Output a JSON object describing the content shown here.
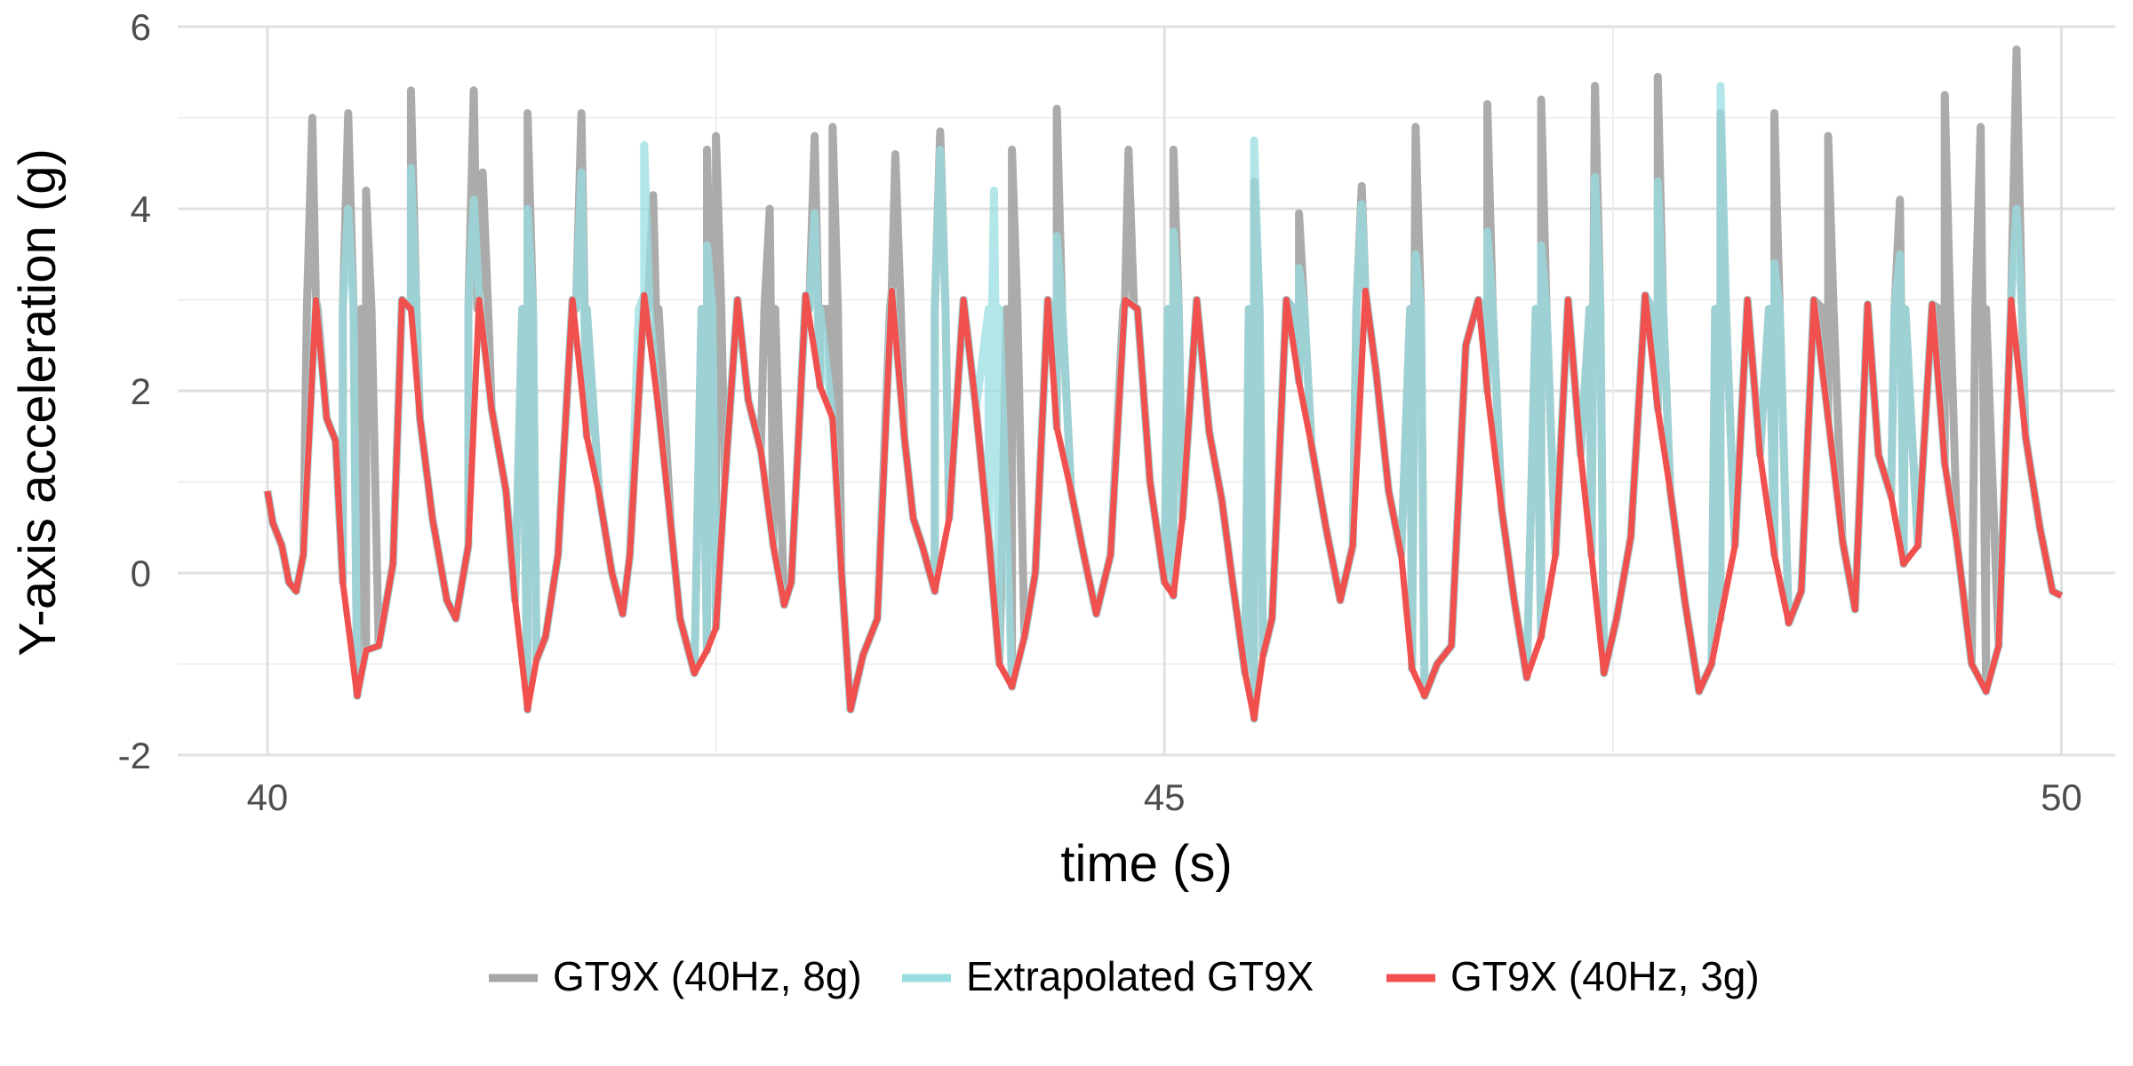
{
  "chart_data": {
    "type": "line",
    "title": "",
    "xlabel": "time (s)",
    "ylabel": "Y-axis acceleration (g)",
    "xlim": [
      39.5,
      50.3
    ],
    "ylim": [
      -2,
      6
    ],
    "x_ticks": [
      "40",
      "45",
      "50"
    ],
    "x_tick_values": [
      40,
      45,
      50
    ],
    "y_ticks": [
      "-2",
      "0",
      "2",
      "4",
      "6"
    ],
    "y_tick_values": [
      -2,
      0,
      2,
      4,
      6
    ],
    "grid": true,
    "legend_position": "bottom",
    "series": [
      {
        "name": "GT9X (40Hz, 8g)",
        "color": "#a6a6a6",
        "peaks": [
          {
            "t": 40.45,
            "v": 5.05
          },
          {
            "t": 41.15,
            "v": 5.3
          },
          {
            "t": 41.75,
            "v": 5.05
          },
          {
            "t": 42.45,
            "v": 4.65
          },
          {
            "t": 43.05,
            "v": 4.8
          },
          {
            "t": 43.75,
            "v": 4.85
          },
          {
            "t": 44.4,
            "v": 5.1
          },
          {
            "t": 45.05,
            "v": 4.65
          },
          {
            "t": 45.75,
            "v": 3.95
          },
          {
            "t": 46.4,
            "v": 4.9
          },
          {
            "t": 47.1,
            "v": 5.2
          },
          {
            "t": 47.75,
            "v": 5.45
          },
          {
            "t": 48.4,
            "v": 5.05
          },
          {
            "t": 49.1,
            "v": 4.1
          },
          {
            "t": 49.75,
            "v": 5.75
          }
        ],
        "secondary_peaks": [
          {
            "t": 40.25,
            "v": 5.0
          },
          {
            "t": 40.55,
            "v": 4.2
          },
          {
            "t": 40.8,
            "v": 5.3
          },
          {
            "t": 41.2,
            "v": 4.4
          },
          {
            "t": 41.45,
            "v": 5.05
          },
          {
            "t": 42.15,
            "v": 4.15
          },
          {
            "t": 42.5,
            "v": 4.8
          },
          {
            "t": 42.8,
            "v": 4.0
          },
          {
            "t": 43.15,
            "v": 4.9
          },
          {
            "t": 43.5,
            "v": 4.6
          },
          {
            "t": 44.15,
            "v": 4.65
          },
          {
            "t": 44.8,
            "v": 4.65
          },
          {
            "t": 45.5,
            "v": 4.3
          },
          {
            "t": 46.1,
            "v": 4.25
          },
          {
            "t": 46.8,
            "v": 5.15
          },
          {
            "t": 47.4,
            "v": 5.35
          },
          {
            "t": 48.1,
            "v": 5.05
          },
          {
            "t": 48.7,
            "v": 4.8
          },
          {
            "t": 49.35,
            "v": 5.25
          },
          {
            "t": 49.55,
            "v": 4.9
          }
        ]
      },
      {
        "name": "Extrapolated GT9X",
        "color": "#99dde0",
        "peaks": [
          {
            "t": 40.45,
            "v": 4.0
          },
          {
            "t": 40.8,
            "v": 4.45
          },
          {
            "t": 41.15,
            "v": 4.1
          },
          {
            "t": 41.45,
            "v": 4.0
          },
          {
            "t": 41.75,
            "v": 4.4
          },
          {
            "t": 42.1,
            "v": 4.7
          },
          {
            "t": 42.45,
            "v": 3.6
          },
          {
            "t": 43.05,
            "v": 3.95
          },
          {
            "t": 43.75,
            "v": 4.65
          },
          {
            "t": 44.05,
            "v": 4.2
          },
          {
            "t": 44.4,
            "v": 3.7
          },
          {
            "t": 45.05,
            "v": 3.75
          },
          {
            "t": 45.5,
            "v": 4.75
          },
          {
            "t": 45.75,
            "v": 3.35
          },
          {
            "t": 46.1,
            "v": 4.05
          },
          {
            "t": 46.4,
            "v": 3.5
          },
          {
            "t": 46.8,
            "v": 3.75
          },
          {
            "t": 47.1,
            "v": 3.6
          },
          {
            "t": 47.4,
            "v": 4.35
          },
          {
            "t": 47.75,
            "v": 4.3
          },
          {
            "t": 48.1,
            "v": 5.35
          },
          {
            "t": 48.4,
            "v": 3.4
          },
          {
            "t": 49.1,
            "v": 3.5
          },
          {
            "t": 49.75,
            "v": 4.0
          }
        ]
      },
      {
        "name": "GT9X (40Hz, 3g)",
        "color": "#f0504e",
        "x": [
          40.0,
          40.03,
          40.08,
          40.12,
          40.16,
          40.2,
          40.27,
          40.33,
          40.38,
          40.42,
          40.5,
          40.55,
          40.62,
          40.7,
          40.75,
          40.8,
          40.85,
          40.92,
          41.0,
          41.05,
          41.12,
          41.18,
          41.25,
          41.33,
          41.38,
          41.45,
          41.5,
          41.55,
          41.62,
          41.7,
          41.78,
          41.85,
          41.92,
          41.98,
          42.02,
          42.1,
          42.18,
          42.25,
          42.3,
          42.38,
          42.45,
          42.5,
          42.55,
          42.62,
          42.68,
          42.75,
          42.82,
          42.88,
          42.92,
          43.0,
          43.08,
          43.15,
          43.2,
          43.25,
          43.32,
          43.4,
          43.48,
          43.55,
          43.6,
          43.65,
          43.72,
          43.8,
          43.88,
          43.95,
          44.02,
          44.08,
          44.15,
          44.22,
          44.28,
          44.35,
          44.4,
          44.48,
          44.55,
          44.62,
          44.7,
          44.78,
          44.85,
          44.92,
          45.0,
          45.05,
          45.1,
          45.18,
          45.25,
          45.32,
          45.38,
          45.45,
          45.5,
          45.55,
          45.6,
          45.68,
          45.75,
          45.82,
          45.9,
          45.98,
          46.05,
          46.12,
          46.18,
          46.25,
          46.32,
          46.38,
          46.45,
          46.52,
          46.6,
          46.68,
          46.75,
          46.8,
          46.88,
          46.95,
          47.02,
          47.1,
          47.18,
          47.25,
          47.32,
          47.38,
          47.45,
          47.52,
          47.6,
          47.68,
          47.75,
          47.82,
          47.9,
          47.98,
          48.05,
          48.1,
          48.18,
          48.25,
          48.32,
          48.4,
          48.48,
          48.55,
          48.62,
          48.7,
          48.78,
          48.85,
          48.92,
          48.98,
          49.05,
          49.12,
          49.2,
          49.28,
          49.35,
          49.42,
          49.5,
          49.58,
          49.65,
          49.72,
          49.8,
          49.88,
          49.95,
          50.0
        ],
        "values": [
          0.9,
          0.55,
          0.3,
          -0.1,
          -0.2,
          0.2,
          3.0,
          1.7,
          1.45,
          -0.1,
          -1.35,
          -0.85,
          -0.8,
          0.1,
          3.0,
          2.9,
          1.7,
          0.6,
          -0.3,
          -0.5,
          0.3,
          3.0,
          1.8,
          0.9,
          -0.3,
          -1.5,
          -0.95,
          -0.7,
          0.2,
          3.0,
          1.5,
          0.85,
          0.0,
          -0.45,
          0.2,
          3.05,
          1.8,
          0.5,
          -0.5,
          -1.1,
          -0.85,
          -0.6,
          1.0,
          3.0,
          1.9,
          1.35,
          0.3,
          -0.35,
          -0.1,
          3.05,
          2.05,
          1.7,
          0.0,
          -1.5,
          -0.9,
          -0.5,
          3.1,
          1.5,
          0.6,
          0.3,
          -0.2,
          0.6,
          3.0,
          1.8,
          0.4,
          -1.0,
          -1.25,
          -0.7,
          0.0,
          3.0,
          1.6,
          0.9,
          0.2,
          -0.45,
          0.2,
          3.0,
          2.9,
          1.0,
          -0.1,
          -0.25,
          0.6,
          3.0,
          1.55,
          0.8,
          -0.1,
          -1.1,
          -1.6,
          -0.9,
          -0.5,
          3.0,
          2.1,
          1.4,
          0.5,
          -0.3,
          0.3,
          3.1,
          2.2,
          0.9,
          0.2,
          -1.05,
          -1.35,
          -1.0,
          -0.8,
          2.5,
          3.0,
          2.0,
          0.7,
          -0.3,
          -1.15,
          -0.7,
          0.2,
          3.0,
          1.3,
          0.2,
          -1.1,
          -0.5,
          0.4,
          3.05,
          1.8,
          0.9,
          -0.3,
          -1.3,
          -1.0,
          -0.5,
          0.3,
          3.0,
          1.3,
          0.2,
          -0.55,
          -0.2,
          3.0,
          1.7,
          0.35,
          -0.4,
          2.95,
          1.3,
          0.85,
          0.1,
          0.3,
          2.95,
          1.2,
          0.3,
          -1.0,
          -1.3,
          -0.8,
          3.0,
          1.5,
          0.5,
          -0.2,
          -0.25
        ],
        "peak_labels_note": ""
      }
    ]
  }
}
